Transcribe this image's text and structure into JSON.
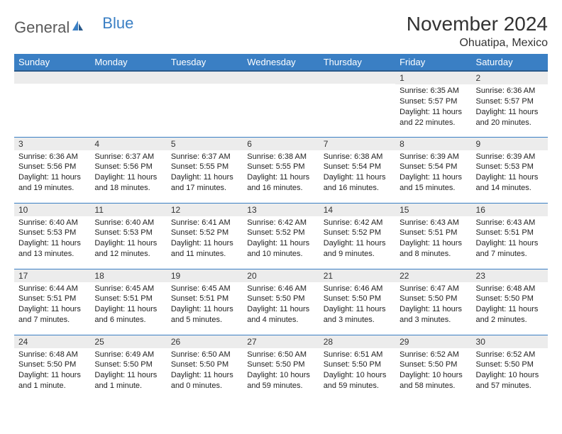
{
  "logo": {
    "text1": "General",
    "text2": "Blue"
  },
  "title": "November 2024",
  "location": "Ohuatipa, Mexico",
  "colors": {
    "header_bg": "#3a7fc4",
    "header_text": "#ffffff",
    "daynum_bg": "#ececec",
    "border": "#3a7fc4",
    "body_text": "#222222",
    "title_text": "#333333"
  },
  "weekdays": [
    "Sunday",
    "Monday",
    "Tuesday",
    "Wednesday",
    "Thursday",
    "Friday",
    "Saturday"
  ],
  "weeks": [
    [
      null,
      null,
      null,
      null,
      null,
      {
        "d": "1",
        "sr": "Sunrise: 6:35 AM",
        "ss": "Sunset: 5:57 PM",
        "dl1": "Daylight: 11 hours",
        "dl2": "and 22 minutes."
      },
      {
        "d": "2",
        "sr": "Sunrise: 6:36 AM",
        "ss": "Sunset: 5:57 PM",
        "dl1": "Daylight: 11 hours",
        "dl2": "and 20 minutes."
      }
    ],
    [
      {
        "d": "3",
        "sr": "Sunrise: 6:36 AM",
        "ss": "Sunset: 5:56 PM",
        "dl1": "Daylight: 11 hours",
        "dl2": "and 19 minutes."
      },
      {
        "d": "4",
        "sr": "Sunrise: 6:37 AM",
        "ss": "Sunset: 5:56 PM",
        "dl1": "Daylight: 11 hours",
        "dl2": "and 18 minutes."
      },
      {
        "d": "5",
        "sr": "Sunrise: 6:37 AM",
        "ss": "Sunset: 5:55 PM",
        "dl1": "Daylight: 11 hours",
        "dl2": "and 17 minutes."
      },
      {
        "d": "6",
        "sr": "Sunrise: 6:38 AM",
        "ss": "Sunset: 5:55 PM",
        "dl1": "Daylight: 11 hours",
        "dl2": "and 16 minutes."
      },
      {
        "d": "7",
        "sr": "Sunrise: 6:38 AM",
        "ss": "Sunset: 5:54 PM",
        "dl1": "Daylight: 11 hours",
        "dl2": "and 16 minutes."
      },
      {
        "d": "8",
        "sr": "Sunrise: 6:39 AM",
        "ss": "Sunset: 5:54 PM",
        "dl1": "Daylight: 11 hours",
        "dl2": "and 15 minutes."
      },
      {
        "d": "9",
        "sr": "Sunrise: 6:39 AM",
        "ss": "Sunset: 5:53 PM",
        "dl1": "Daylight: 11 hours",
        "dl2": "and 14 minutes."
      }
    ],
    [
      {
        "d": "10",
        "sr": "Sunrise: 6:40 AM",
        "ss": "Sunset: 5:53 PM",
        "dl1": "Daylight: 11 hours",
        "dl2": "and 13 minutes."
      },
      {
        "d": "11",
        "sr": "Sunrise: 6:40 AM",
        "ss": "Sunset: 5:53 PM",
        "dl1": "Daylight: 11 hours",
        "dl2": "and 12 minutes."
      },
      {
        "d": "12",
        "sr": "Sunrise: 6:41 AM",
        "ss": "Sunset: 5:52 PM",
        "dl1": "Daylight: 11 hours",
        "dl2": "and 11 minutes."
      },
      {
        "d": "13",
        "sr": "Sunrise: 6:42 AM",
        "ss": "Sunset: 5:52 PM",
        "dl1": "Daylight: 11 hours",
        "dl2": "and 10 minutes."
      },
      {
        "d": "14",
        "sr": "Sunrise: 6:42 AM",
        "ss": "Sunset: 5:52 PM",
        "dl1": "Daylight: 11 hours",
        "dl2": "and 9 minutes."
      },
      {
        "d": "15",
        "sr": "Sunrise: 6:43 AM",
        "ss": "Sunset: 5:51 PM",
        "dl1": "Daylight: 11 hours",
        "dl2": "and 8 minutes."
      },
      {
        "d": "16",
        "sr": "Sunrise: 6:43 AM",
        "ss": "Sunset: 5:51 PM",
        "dl1": "Daylight: 11 hours",
        "dl2": "and 7 minutes."
      }
    ],
    [
      {
        "d": "17",
        "sr": "Sunrise: 6:44 AM",
        "ss": "Sunset: 5:51 PM",
        "dl1": "Daylight: 11 hours",
        "dl2": "and 7 minutes."
      },
      {
        "d": "18",
        "sr": "Sunrise: 6:45 AM",
        "ss": "Sunset: 5:51 PM",
        "dl1": "Daylight: 11 hours",
        "dl2": "and 6 minutes."
      },
      {
        "d": "19",
        "sr": "Sunrise: 6:45 AM",
        "ss": "Sunset: 5:51 PM",
        "dl1": "Daylight: 11 hours",
        "dl2": "and 5 minutes."
      },
      {
        "d": "20",
        "sr": "Sunrise: 6:46 AM",
        "ss": "Sunset: 5:50 PM",
        "dl1": "Daylight: 11 hours",
        "dl2": "and 4 minutes."
      },
      {
        "d": "21",
        "sr": "Sunrise: 6:46 AM",
        "ss": "Sunset: 5:50 PM",
        "dl1": "Daylight: 11 hours",
        "dl2": "and 3 minutes."
      },
      {
        "d": "22",
        "sr": "Sunrise: 6:47 AM",
        "ss": "Sunset: 5:50 PM",
        "dl1": "Daylight: 11 hours",
        "dl2": "and 3 minutes."
      },
      {
        "d": "23",
        "sr": "Sunrise: 6:48 AM",
        "ss": "Sunset: 5:50 PM",
        "dl1": "Daylight: 11 hours",
        "dl2": "and 2 minutes."
      }
    ],
    [
      {
        "d": "24",
        "sr": "Sunrise: 6:48 AM",
        "ss": "Sunset: 5:50 PM",
        "dl1": "Daylight: 11 hours",
        "dl2": "and 1 minute."
      },
      {
        "d": "25",
        "sr": "Sunrise: 6:49 AM",
        "ss": "Sunset: 5:50 PM",
        "dl1": "Daylight: 11 hours",
        "dl2": "and 1 minute."
      },
      {
        "d": "26",
        "sr": "Sunrise: 6:50 AM",
        "ss": "Sunset: 5:50 PM",
        "dl1": "Daylight: 11 hours",
        "dl2": "and 0 minutes."
      },
      {
        "d": "27",
        "sr": "Sunrise: 6:50 AM",
        "ss": "Sunset: 5:50 PM",
        "dl1": "Daylight: 10 hours",
        "dl2": "and 59 minutes."
      },
      {
        "d": "28",
        "sr": "Sunrise: 6:51 AM",
        "ss": "Sunset: 5:50 PM",
        "dl1": "Daylight: 10 hours",
        "dl2": "and 59 minutes."
      },
      {
        "d": "29",
        "sr": "Sunrise: 6:52 AM",
        "ss": "Sunset: 5:50 PM",
        "dl1": "Daylight: 10 hours",
        "dl2": "and 58 minutes."
      },
      {
        "d": "30",
        "sr": "Sunrise: 6:52 AM",
        "ss": "Sunset: 5:50 PM",
        "dl1": "Daylight: 10 hours",
        "dl2": "and 57 minutes."
      }
    ]
  ]
}
